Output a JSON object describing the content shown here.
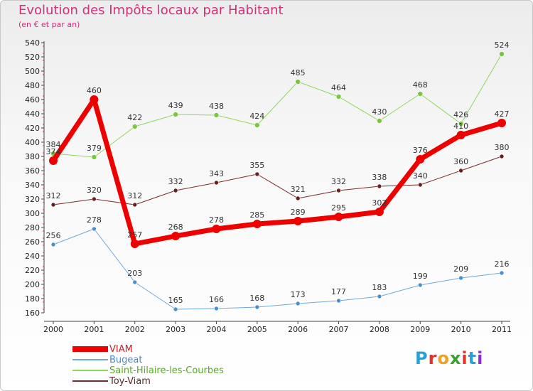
{
  "header": {
    "title": "Evolution des Impôts locaux par Habitant",
    "subtitle": "(en € et par an)"
  },
  "logo": {
    "text": "Proxiti",
    "colors": [
      "#2aa0d8",
      "#e8302a",
      "#f0a020",
      "#3aa030",
      "#e8302a",
      "#2aa0d8",
      "#8a2be2"
    ]
  },
  "chart_data": {
    "type": "line",
    "title": "Evolution des Impôts locaux par Habitant",
    "subtitle": "(en € et par an)",
    "xlabel": "",
    "ylabel": "",
    "ylim": [
      160,
      540
    ],
    "yticks": [
      160,
      180,
      200,
      220,
      240,
      260,
      280,
      300,
      320,
      340,
      360,
      380,
      400,
      420,
      440,
      460,
      480,
      500,
      520,
      540
    ],
    "grid": false,
    "legend_position": "bottom-left",
    "categories": [
      "2000",
      "2001",
      "2002",
      "2003",
      "2004",
      "2005",
      "2006",
      "2007",
      "2008",
      "2009",
      "2010",
      "2011"
    ],
    "series": [
      {
        "name": "Saint-Hilaire-les-Courbes",
        "color": "#8fd65c",
        "point": "#7cc63f",
        "width": 1,
        "radius": 3.5,
        "values": [
          384,
          379,
          422,
          439,
          438,
          424,
          485,
          464,
          430,
          468,
          426,
          524
        ],
        "labels": [
          "384",
          "379",
          "422",
          "439",
          "438",
          "424",
          "485",
          "464",
          "430",
          "468",
          "426",
          "524"
        ]
      },
      {
        "name": "Toy-Viam",
        "color": "#7a2a2a",
        "point": "#6a1f1f",
        "width": 1,
        "radius": 3,
        "values": [
          312,
          320,
          312,
          332,
          343,
          355,
          321,
          332,
          338,
          340,
          360,
          380
        ],
        "labels": [
          "312",
          "320",
          "312",
          "332",
          "343",
          "355",
          "321",
          "332",
          "338",
          "340",
          "360",
          "380"
        ]
      },
      {
        "name": "Bugeat",
        "color": "#6fa8d8",
        "point": "#4a90d0",
        "width": 1,
        "radius": 3,
        "values": [
          256,
          278,
          203,
          165,
          166,
          168,
          173,
          177,
          183,
          199,
          209,
          216
        ],
        "labels": [
          "256",
          "278",
          "203",
          "165",
          "166",
          "168",
          "173",
          "177",
          "183",
          "199",
          "209",
          "216"
        ]
      },
      {
        "name": "VIAM",
        "color": "#ee0000",
        "point": "#ee0000",
        "width": 7,
        "radius": 6,
        "values": [
          374,
          460,
          257,
          268,
          278,
          285,
          289,
          295,
          302,
          376,
          410,
          427
        ],
        "labels": [
          "374",
          "460",
          "257",
          "268",
          "278",
          "285",
          "289",
          "295",
          "302",
          "376",
          "410",
          "427"
        ]
      }
    ]
  },
  "legend": [
    {
      "name": "VIAM",
      "color": "#ee0000",
      "thickness": 8
    },
    {
      "name": "Bugeat",
      "color": "#6fa8d8",
      "thickness": 2
    },
    {
      "name": "Saint-Hilaire-les-Courbes",
      "color": "#8fd65c",
      "thickness": 2
    },
    {
      "name": "Toy-Viam",
      "color": "#7a2a2a",
      "thickness": 2
    }
  ]
}
